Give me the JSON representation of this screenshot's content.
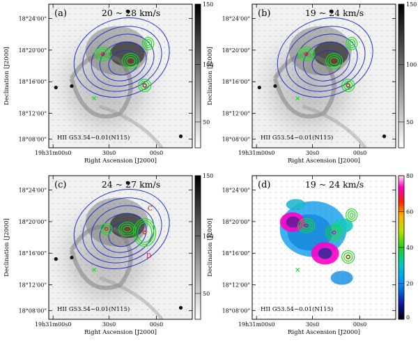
{
  "panels": [
    {
      "id": "a",
      "letter": "(a)",
      "velocity": "20 ~ 28 km/s",
      "object": "HII G53.54−0.01(N115)",
      "background": "grey",
      "source_labels": [],
      "colorbar": {
        "ticks": [
          "150",
          "100",
          "50"
        ]
      }
    },
    {
      "id": "b",
      "letter": "(b)",
      "velocity": "19 ~ 24 km/s",
      "object": "HII G53.54−0.01(N115)",
      "background": "grey",
      "source_labels": [],
      "colorbar": {
        "ticks": [
          "150",
          "100",
          "50"
        ]
      }
    },
    {
      "id": "c",
      "letter": "(c)",
      "velocity": "24 ~ 27 km/s",
      "object": "HII G53.54−0.01(N115)",
      "background": "grey",
      "source_labels": [
        "C",
        "D"
      ],
      "colorbar": {
        "ticks": [
          "150",
          "100",
          "50"
        ]
      }
    },
    {
      "id": "d",
      "letter": "(d)",
      "velocity": "19 ~ 24 km/s",
      "object": "HII G53.54−0.01(N115)",
      "background": "color",
      "source_labels": [],
      "colorbar": {
        "ticks": [
          "80",
          "60",
          "40",
          "20",
          "0"
        ]
      }
    }
  ],
  "axes": {
    "y_ticks": [
      "18°24'00\"",
      "18°20'00\"",
      "18°16'00\"",
      "18°12'00\"",
      "18°08'00\""
    ],
    "x_ticks": [
      "19h31m00s0",
      "30s0",
      "00s0"
    ],
    "xlabel": "Right Ascension [J2000]",
    "ylabel": "Declination [J2000]"
  },
  "colors": {
    "blue_contour": "#1f2fd0",
    "green_contour": "#14e014",
    "red_marker": "#e00000",
    "label_red": "#e00000"
  }
}
